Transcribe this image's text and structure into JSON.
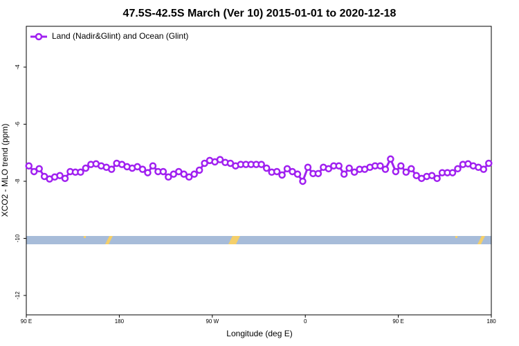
{
  "chart_data": {
    "type": "line",
    "title": "47.5S-42.5S March (Ver 10)   2015-01-01 to 2020-12-18",
    "x_label": "Longitude (deg E)",
    "y_label": "XCO2 - MLO trend (ppm)",
    "xlim": [
      90,
      540
    ],
    "xticks": [
      {
        "value": 90,
        "label": "90 E"
      },
      {
        "value": 180,
        "label": "180"
      },
      {
        "value": 270,
        "label": "90 W"
      },
      {
        "value": 360,
        "label": "0"
      },
      {
        "value": 450,
        "label": "90 E"
      },
      {
        "value": 540,
        "label": "180"
      }
    ],
    "ylim": [
      -12.68,
      -2.57
    ],
    "yticks": [
      -12,
      -10,
      -8,
      -6,
      -4
    ],
    "legend": "top-left",
    "series": [
      {
        "name": "Land (Nadir&Glint) and Ocean (Glint)",
        "color": "#a020f0",
        "x": [
          92.5,
          97.5,
          102.5,
          107.5,
          112.5,
          117.5,
          122.5,
          127.5,
          132.5,
          137.5,
          142.5,
          147.5,
          152.5,
          157.5,
          162.5,
          167.5,
          172.5,
          177.5,
          182.5,
          187.5,
          192.5,
          197.5,
          202.5,
          207.5,
          212.5,
          217.5,
          222.5,
          227.5,
          232.5,
          237.5,
          242.5,
          247.5,
          252.5,
          257.5,
          262.5,
          267.5,
          272.5,
          277.5,
          282.5,
          287.5,
          292.5,
          297.5,
          302.5,
          307.5,
          312.5,
          317.5,
          322.5,
          327.5,
          332.5,
          337.5,
          342.5,
          347.5,
          352.5,
          357.5,
          362.5,
          367.5,
          372.5,
          377.5,
          382.5,
          387.5,
          392.5,
          397.5,
          402.5,
          407.5,
          412.5,
          417.5,
          422.5,
          427.5,
          432.5,
          437.5,
          442.5,
          447.5,
          452.5,
          457.5,
          462.5,
          467.5,
          472.5,
          477.5,
          482.5,
          487.5,
          492.5,
          497.5,
          502.5,
          507.5,
          512.5,
          517.5,
          522.5,
          527.5,
          532.5,
          537.5
        ],
        "values": [
          -7.46,
          -7.66,
          -7.56,
          -7.83,
          -7.92,
          -7.85,
          -7.8,
          -7.9,
          -7.66,
          -7.68,
          -7.68,
          -7.54,
          -7.41,
          -7.39,
          -7.46,
          -7.51,
          -7.58,
          -7.37,
          -7.41,
          -7.49,
          -7.54,
          -7.49,
          -7.58,
          -7.7,
          -7.46,
          -7.66,
          -7.66,
          -7.85,
          -7.75,
          -7.66,
          -7.75,
          -7.85,
          -7.75,
          -7.61,
          -7.37,
          -7.27,
          -7.32,
          -7.24,
          -7.34,
          -7.37,
          -7.46,
          -7.41,
          -7.41,
          -7.41,
          -7.41,
          -7.41,
          -7.54,
          -7.68,
          -7.66,
          -7.78,
          -7.56,
          -7.66,
          -7.75,
          -8.0,
          -7.51,
          -7.73,
          -7.73,
          -7.51,
          -7.56,
          -7.46,
          -7.46,
          -7.75,
          -7.54,
          -7.68,
          -7.58,
          -7.58,
          -7.51,
          -7.46,
          -7.46,
          -7.58,
          -7.22,
          -7.66,
          -7.46,
          -7.68,
          -7.56,
          -7.8,
          -7.9,
          -7.83,
          -7.8,
          -7.9,
          -7.7,
          -7.7,
          -7.7,
          -7.56,
          -7.41,
          -7.39,
          -7.46,
          -7.51,
          -7.58,
          -7.37
        ]
      }
    ]
  }
}
